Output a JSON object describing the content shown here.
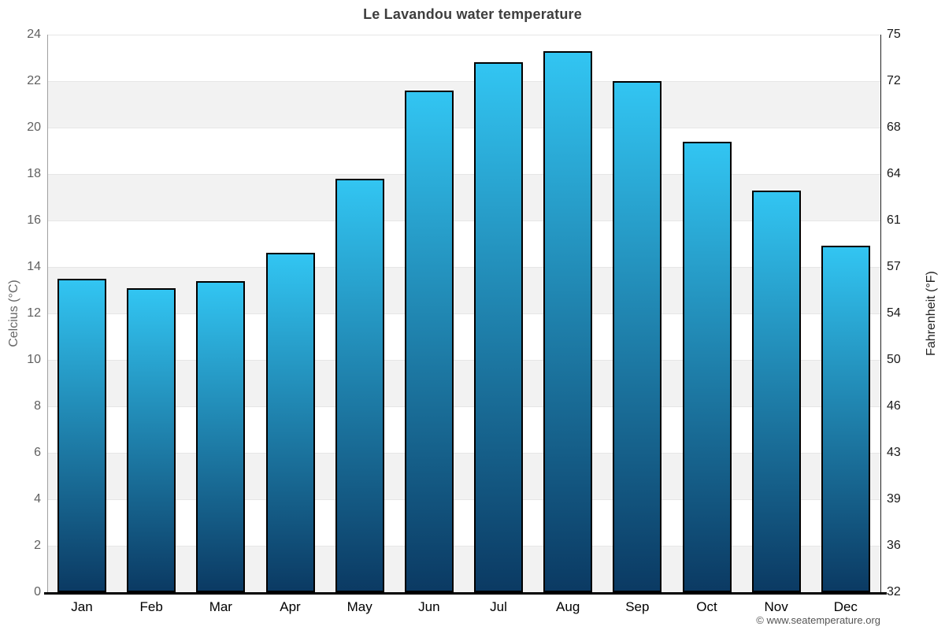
{
  "page": {
    "title": "Le Lavandou water temperature",
    "footer": "© www.seatemperature.org"
  },
  "chart_data": {
    "type": "bar",
    "title": "Le Lavandou water temperature",
    "categories": [
      "Jan",
      "Feb",
      "Mar",
      "Apr",
      "May",
      "Jun",
      "Jul",
      "Aug",
      "Sep",
      "Oct",
      "Nov",
      "Dec"
    ],
    "values": [
      13.5,
      13.1,
      13.4,
      14.6,
      17.8,
      21.6,
      22.8,
      23.3,
      22.0,
      19.4,
      17.3,
      14.9
    ],
    "series_name": "water temperature (°C)",
    "xlabel": "",
    "ylabel_left": "Celcius (°C)",
    "ylabel_right": "Fahrenheit (°F)",
    "ylim": [
      0,
      24
    ],
    "yticks_celsius": [
      0,
      2,
      4,
      6,
      8,
      10,
      12,
      14,
      16,
      18,
      20,
      22,
      24
    ],
    "yticks_fahrenheit": [
      32,
      36,
      39,
      43,
      46,
      50,
      54,
      57,
      61,
      64,
      68,
      72,
      75
    ],
    "grid": true,
    "legend": "none",
    "colors": {
      "bar_gradient_top": "#32c5f2",
      "bar_gradient_bottom": "#0b3a63",
      "bar_border": "#000000",
      "band": "#f2f2f2",
      "gridline": "#e6e6e6",
      "title_text": "#3e3e3e",
      "left_axis_text": "#606060",
      "right_axis_text": "#1a1a1a"
    }
  }
}
